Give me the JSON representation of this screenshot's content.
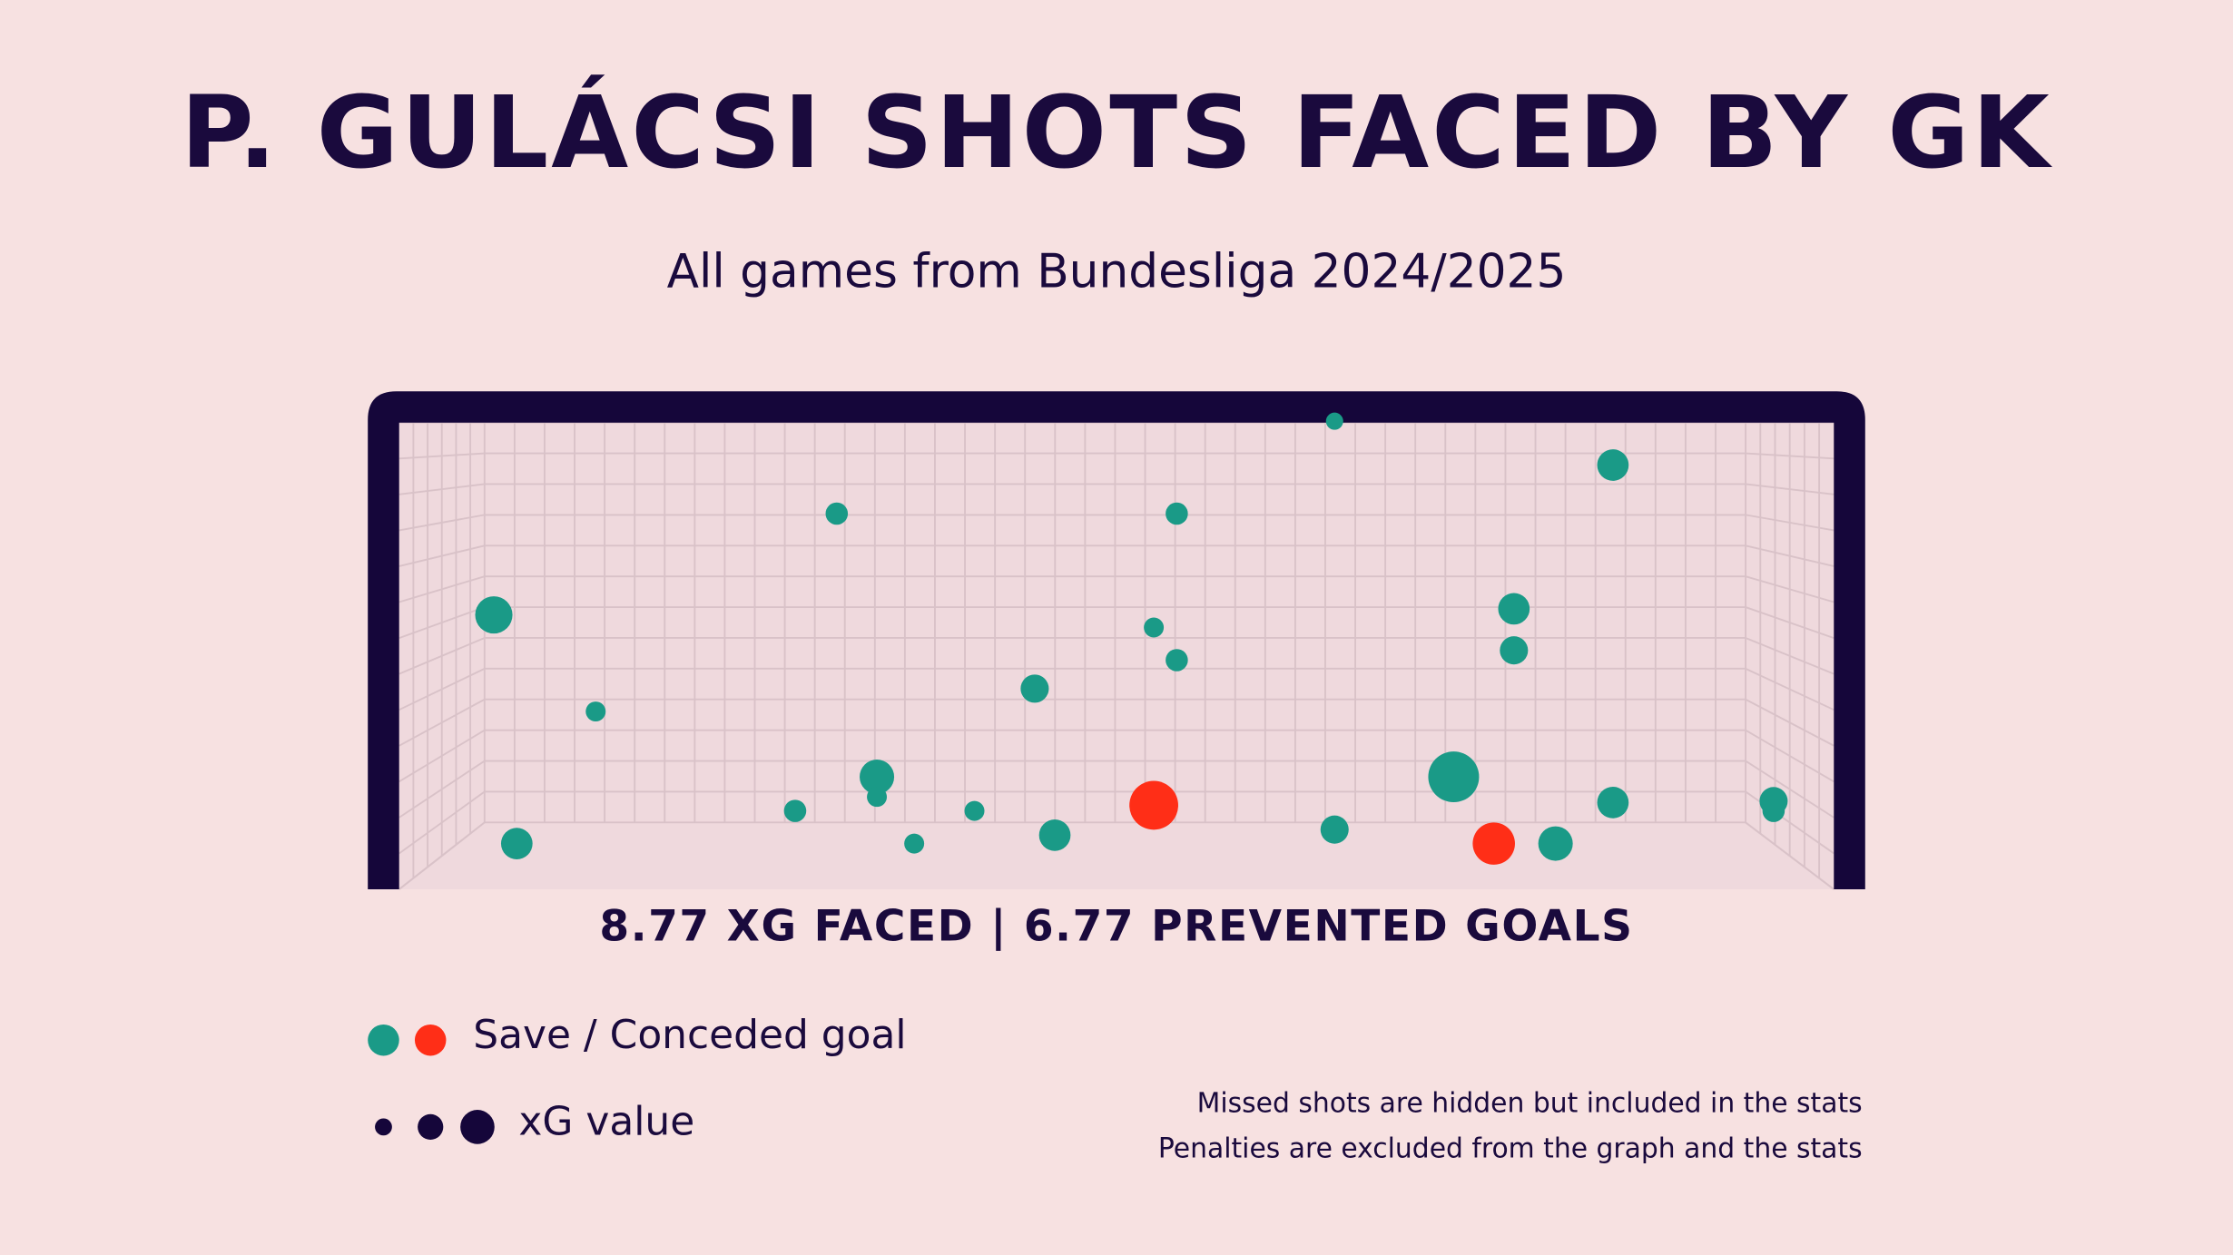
{
  "chart_data": {
    "type": "scatter",
    "title": "P. GULÁCSI SHOTS FACED BY GK",
    "subtitle": "All games from Bundesliga 2024/2025",
    "stats": "8.77 XG FACED | 6.77 PREVENTED GOALS",
    "xlim": [
      0,
      100
    ],
    "ylim": [
      0,
      100
    ],
    "series": [
      {
        "color": "#1a9a87",
        "x": [
          65.2,
          84.6,
          30.5,
          54.2,
          6.6,
          77.7,
          52.6,
          54.2,
          77.7,
          44.3,
          13.7,
          33.3,
          33.3,
          73.5,
          27.6,
          40.1,
          84.6,
          95.8,
          95.8,
          8.2,
          35.9,
          45.7,
          65.2,
          80.6
        ],
        "y": [
          100.3,
          90.9,
          80.5,
          80.5,
          58.8,
          60.1,
          56.1,
          49.1,
          51.2,
          43.0,
          38.1,
          24.1,
          19.8,
          24.1,
          16.8,
          16.8,
          18.6,
          18.9,
          16.8,
          9.8,
          9.8,
          11.6,
          12.8,
          9.8
        ],
        "xg": [
          0.03,
          0.1,
          0.05,
          0.05,
          0.14,
          0.1,
          0.04,
          0.05,
          0.08,
          0.08,
          0.04,
          0.12,
          0.04,
          0.26,
          0.05,
          0.04,
          0.1,
          0.08,
          0.05,
          0.1,
          0.04,
          0.1,
          0.08,
          0.12
        ]
      },
      {
        "color": "#ff2e17",
        "x": [
          52.6,
          76.3
        ],
        "y": [
          18.0,
          9.8
        ],
        "xg": [
          0.24,
          0.18
        ]
      }
    ],
    "legend": {
      "outcome": "Save / Conceded goal",
      "size": "xG value"
    },
    "notes": [
      "Missed shots are hidden but included in the stats",
      "Penalties are excluded from the graph and the stats"
    ]
  }
}
